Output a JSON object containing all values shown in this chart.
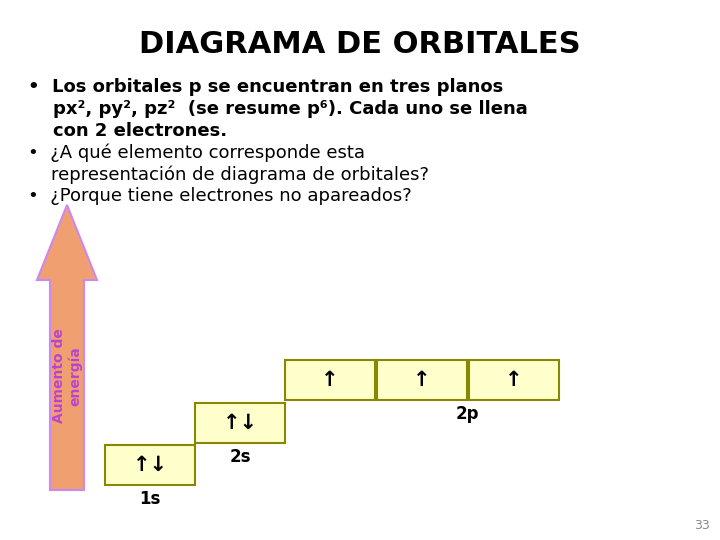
{
  "title": "DIAGRAMA DE ORBITALES",
  "title_fontsize": 22,
  "title_fontweight": "bold",
  "background_color": "#ffffff",
  "bullet1_line1": "•  Los orbitales p se encuentran en tres planos",
  "bullet1_line2": "    px², py², pz²  (se resume p⁶). Cada uno se llena",
  "bullet1_line3": "    con 2 electrones.",
  "bullet2_line1": "•  ¿A qué elemento corresponde esta",
  "bullet2_line2": "    representación de diagrama de orbitales?",
  "bullet3_line1": "•  ¿Porque tiene electrones no apareados?",
  "text_fontsize": 13,
  "box_fill": "#ffffcc",
  "box_edge": "#888800",
  "arrow_fill": "#f0a070",
  "arrow_edge": "#cc88ee",
  "arrow_label": "Aumento de\nenergía",
  "arrow_label_color": "#bb44cc",
  "label_1s": "1s",
  "label_2s": "2s",
  "label_2p": "2p",
  "electron_up_down": "↑↓",
  "electron_up": "↑",
  "page_num": "33",
  "label_fontsize": 12,
  "label_fontweight": "bold"
}
